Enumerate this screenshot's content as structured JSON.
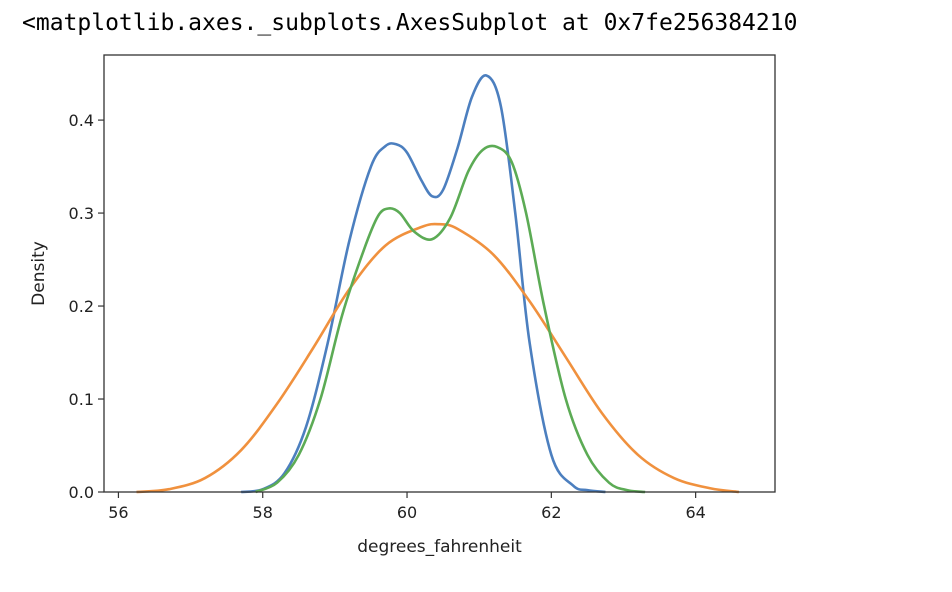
{
  "output_repr": "<matplotlib.axes._subplots.AxesSubplot at 0x7fe256384210",
  "chart_data": {
    "type": "line",
    "title": "",
    "xlabel": "degrees_fahrenheit",
    "ylabel": "Density",
    "xlim": [
      55.8,
      65.1
    ],
    "ylim": [
      0.0,
      0.47
    ],
    "xticks": [
      56,
      58,
      60,
      62,
      64
    ],
    "yticks": [
      0.0,
      0.1,
      0.2,
      0.3,
      0.4
    ],
    "xtick_labels": [
      "56",
      "58",
      "60",
      "62",
      "64"
    ],
    "ytick_labels": [
      "0.0",
      "0.1",
      "0.2",
      "0.3",
      "0.4"
    ],
    "grid": false,
    "legend": "none",
    "series": [
      {
        "color": "#4c7fbf",
        "x": [
          57.7,
          58.0,
          58.3,
          58.6,
          58.9,
          59.2,
          59.5,
          59.7,
          59.85,
          60.0,
          60.2,
          60.35,
          60.5,
          60.7,
          60.9,
          61.1,
          61.3,
          61.5,
          61.7,
          62.0,
          62.3,
          62.5,
          62.75
        ],
        "y": [
          0.0,
          0.003,
          0.02,
          0.07,
          0.16,
          0.27,
          0.35,
          0.372,
          0.374,
          0.365,
          0.335,
          0.318,
          0.325,
          0.37,
          0.425,
          0.448,
          0.415,
          0.3,
          0.16,
          0.04,
          0.007,
          0.002,
          0.0
        ]
      },
      {
        "color": "#f0913e",
        "x": [
          56.25,
          56.7,
          57.2,
          57.7,
          58.2,
          58.7,
          59.2,
          59.7,
          60.2,
          60.45,
          60.7,
          61.2,
          61.7,
          62.2,
          62.7,
          63.2,
          63.7,
          64.2,
          64.6
        ],
        "y": [
          0.0,
          0.003,
          0.015,
          0.045,
          0.095,
          0.155,
          0.218,
          0.265,
          0.285,
          0.288,
          0.283,
          0.255,
          0.205,
          0.145,
          0.085,
          0.04,
          0.015,
          0.004,
          0.0
        ]
      },
      {
        "color": "#5cab55",
        "x": [
          57.9,
          58.2,
          58.5,
          58.8,
          59.1,
          59.4,
          59.6,
          59.75,
          59.9,
          60.1,
          60.35,
          60.6,
          60.85,
          61.05,
          61.25,
          61.45,
          61.65,
          61.9,
          62.2,
          62.5,
          62.8,
          63.05,
          63.3
        ],
        "y": [
          0.0,
          0.01,
          0.04,
          0.1,
          0.19,
          0.26,
          0.297,
          0.305,
          0.3,
          0.28,
          0.272,
          0.295,
          0.345,
          0.368,
          0.371,
          0.355,
          0.3,
          0.2,
          0.1,
          0.04,
          0.01,
          0.002,
          0.0
        ]
      }
    ]
  }
}
